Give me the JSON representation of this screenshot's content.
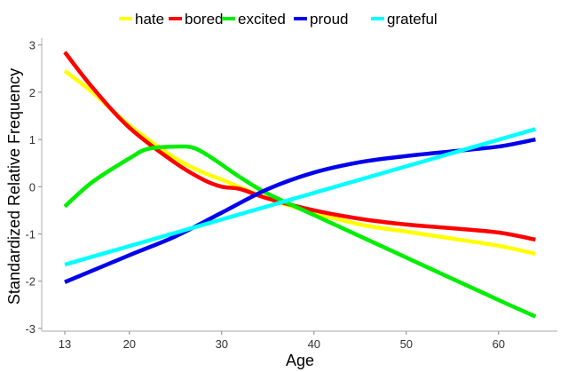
{
  "chart_data": {
    "type": "line",
    "title": "",
    "xlabel": "Age",
    "ylabel": "Standardized Relative Frequency",
    "xlim": [
      13,
      64
    ],
    "ylim": [
      -3,
      3
    ],
    "xticks": [
      13,
      20,
      30,
      40,
      50,
      60
    ],
    "yticks": [
      3,
      2,
      1,
      0,
      -1,
      -2,
      -3
    ],
    "legend_position": "top",
    "grid": false,
    "series": [
      {
        "name": "hate",
        "color": "#ffff00",
        "x": [
          13,
          16,
          20,
          25,
          28,
          30,
          35,
          40,
          45,
          50,
          55,
          60,
          64
        ],
        "y": [
          2.45,
          2.0,
          1.3,
          0.6,
          0.3,
          0.15,
          -0.25,
          -0.55,
          -0.8,
          -0.95,
          -1.1,
          -1.25,
          -1.42
        ]
      },
      {
        "name": "bored",
        "color": "#ff0000",
        "x": [
          13,
          16,
          20,
          25,
          28,
          30,
          32,
          35,
          40,
          45,
          50,
          55,
          60,
          64
        ],
        "y": [
          2.85,
          2.1,
          1.25,
          0.5,
          0.15,
          0.0,
          -0.05,
          -0.25,
          -0.5,
          -0.68,
          -0.8,
          -0.88,
          -0.97,
          -1.12
        ]
      },
      {
        "name": "excited",
        "color": "#00ee00",
        "x": [
          13,
          16,
          20,
          22,
          25,
          27,
          29,
          32,
          35,
          40,
          45,
          50,
          55,
          60,
          64
        ],
        "y": [
          -0.42,
          0.1,
          0.6,
          0.8,
          0.85,
          0.82,
          0.6,
          0.2,
          -0.15,
          -0.6,
          -1.05,
          -1.5,
          -1.95,
          -2.4,
          -2.75
        ]
      },
      {
        "name": "proud",
        "color": "#0000ee",
        "x": [
          13,
          20,
          25,
          30,
          35,
          40,
          45,
          50,
          55,
          60,
          64
        ],
        "y": [
          -2.02,
          -1.45,
          -1.05,
          -0.55,
          -0.05,
          0.3,
          0.52,
          0.65,
          0.75,
          0.85,
          1.0
        ]
      },
      {
        "name": "grateful",
        "color": "#00ffff",
        "x": [
          13,
          64
        ],
        "y": [
          -1.65,
          1.22
        ]
      }
    ]
  }
}
